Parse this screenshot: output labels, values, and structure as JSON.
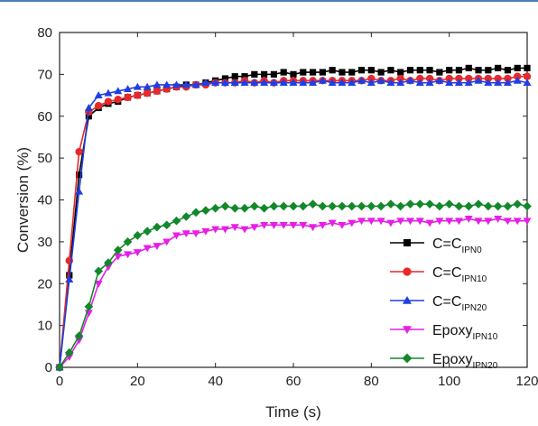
{
  "chart_data": {
    "type": "line",
    "xlabel": "Time (s)",
    "ylabel": "Conversion (%)",
    "xlim": [
      0,
      120
    ],
    "ylim": [
      0,
      80
    ],
    "x_ticks": [
      0,
      20,
      40,
      60,
      80,
      100,
      120
    ],
    "y_ticks": [
      0,
      10,
      20,
      30,
      40,
      50,
      60,
      70,
      80
    ],
    "grid": false,
    "legend_position": "bottom-right",
    "series": [
      {
        "key": "cc_ipn0",
        "name_main": "C=C",
        "name_sub": "IPN0",
        "color": "#000000",
        "marker": "square",
        "x": [
          0,
          2.5,
          5,
          7.5,
          10,
          12.5,
          15,
          17.5,
          20,
          22.5,
          25,
          27.5,
          30,
          32.5,
          35,
          37.5,
          40,
          42.5,
          45,
          47.5,
          50,
          52.5,
          55,
          57.5,
          60,
          62.5,
          65,
          67.5,
          70,
          72.5,
          75,
          77.5,
          80,
          82.5,
          85,
          87.5,
          90,
          92.5,
          95,
          97.5,
          100,
          102.5,
          105,
          107.5,
          110,
          112.5,
          115,
          117.5,
          120
        ],
        "y": [
          0,
          22,
          46,
          60,
          62,
          63,
          63.5,
          64.5,
          65,
          65.5,
          66,
          66.5,
          67,
          67.5,
          67.5,
          68,
          68.5,
          69,
          69.5,
          69.5,
          70,
          70,
          70,
          70.5,
          70,
          70.5,
          70.5,
          70.5,
          71,
          70.5,
          70.5,
          71,
          71,
          70.5,
          71,
          70.5,
          71,
          71,
          71,
          70.5,
          71,
          71,
          71.5,
          71,
          71,
          71.5,
          71,
          71.5,
          71.5
        ]
      },
      {
        "key": "cc_ipn10",
        "name_main": "C=C",
        "name_sub": "IPN10",
        "color": "#e8282a",
        "marker": "circle",
        "x": [
          0,
          2.5,
          5,
          7.5,
          10,
          12.5,
          15,
          17.5,
          20,
          22.5,
          25,
          27.5,
          30,
          32.5,
          35,
          37.5,
          40,
          42.5,
          45,
          47.5,
          50,
          52.5,
          55,
          57.5,
          60,
          62.5,
          65,
          67.5,
          70,
          72.5,
          75,
          77.5,
          80,
          82.5,
          85,
          87.5,
          90,
          92.5,
          95,
          97.5,
          100,
          102.5,
          105,
          107.5,
          110,
          112.5,
          115,
          117.5,
          120
        ],
        "y": [
          0,
          25.5,
          51.5,
          61,
          62.5,
          63.5,
          64,
          64.5,
          65,
          65.5,
          66,
          66.5,
          67,
          67,
          67.5,
          67.5,
          68,
          68,
          68,
          68.5,
          68,
          68.5,
          68,
          68.5,
          68.5,
          68.5,
          68.5,
          68.5,
          68.5,
          68.5,
          68.5,
          68.5,
          69,
          68.5,
          68.5,
          69,
          68.5,
          69,
          69,
          68.5,
          69,
          69,
          69,
          69,
          69,
          69,
          69,
          69.5,
          69.5
        ]
      },
      {
        "key": "cc_ipn20",
        "name_main": "C=C",
        "name_sub": "IPN20",
        "color": "#1f3fe0",
        "marker": "triangle-up",
        "x": [
          0,
          2.5,
          5,
          7.5,
          10,
          12.5,
          15,
          17.5,
          20,
          22.5,
          25,
          27.5,
          30,
          32.5,
          35,
          37.5,
          40,
          42.5,
          45,
          47.5,
          50,
          52.5,
          55,
          57.5,
          60,
          62.5,
          65,
          67.5,
          70,
          72.5,
          75,
          77.5,
          80,
          82.5,
          85,
          87.5,
          90,
          92.5,
          95,
          97.5,
          100,
          102.5,
          105,
          107.5,
          110,
          112.5,
          115,
          117.5,
          120
        ],
        "y": [
          0,
          21,
          42,
          62,
          65,
          65.5,
          66,
          66.5,
          67,
          67,
          67.5,
          67.5,
          67.5,
          67.5,
          67.5,
          68,
          68,
          68,
          68,
          68,
          68,
          68,
          68,
          68,
          68,
          68,
          68,
          68.5,
          68,
          68,
          68,
          68.5,
          68,
          68.5,
          68,
          68,
          68.5,
          68,
          68,
          68.5,
          68,
          68,
          68,
          68.5,
          68,
          68,
          68,
          68.5,
          68
        ]
      },
      {
        "key": "epoxy_ipn10",
        "name_main": "Epoxy",
        "name_sub": "IPN10",
        "color": "#e61ee6",
        "marker": "triangle-down",
        "x": [
          0,
          2.5,
          5,
          7.5,
          10,
          12.5,
          15,
          17.5,
          20,
          22.5,
          25,
          27.5,
          30,
          32.5,
          35,
          37.5,
          40,
          42.5,
          45,
          47.5,
          50,
          52.5,
          55,
          57.5,
          60,
          62.5,
          65,
          67.5,
          70,
          72.5,
          75,
          77.5,
          80,
          82.5,
          85,
          87.5,
          90,
          92.5,
          95,
          97.5,
          100,
          102.5,
          105,
          107.5,
          110,
          112.5,
          115,
          117.5,
          120
        ],
        "y": [
          0,
          2.5,
          6.5,
          13,
          20,
          24,
          26.5,
          27,
          27.5,
          28.5,
          29,
          30,
          31.5,
          32,
          32,
          32.5,
          33,
          33,
          33.5,
          33,
          33.5,
          34,
          34,
          34,
          34,
          34,
          33.5,
          34,
          34.5,
          34,
          34.5,
          35,
          35,
          35,
          34.5,
          35,
          35,
          35,
          34.5,
          35,
          35,
          35,
          35.5,
          35,
          35,
          35.5,
          35,
          35,
          35
        ]
      },
      {
        "key": "epoxy_ipn20",
        "name_main": "Epoxy",
        "name_sub": "IPN20",
        "color": "#12882a",
        "marker": "diamond",
        "x": [
          0,
          2.5,
          5,
          7.5,
          10,
          12.5,
          15,
          17.5,
          20,
          22.5,
          25,
          27.5,
          30,
          32.5,
          35,
          37.5,
          40,
          42.5,
          45,
          47.5,
          50,
          52.5,
          55,
          57.5,
          60,
          62.5,
          65,
          67.5,
          70,
          72.5,
          75,
          77.5,
          80,
          82.5,
          85,
          87.5,
          90,
          92.5,
          95,
          97.5,
          100,
          102.5,
          105,
          107.5,
          110,
          112.5,
          115,
          117.5,
          120
        ],
        "y": [
          0,
          3.5,
          7.5,
          14.5,
          23,
          25,
          28,
          30,
          31.5,
          32.5,
          33.5,
          34,
          35,
          36,
          37,
          37.5,
          38,
          38.5,
          38,
          38,
          38.5,
          38,
          38.5,
          38.5,
          38.5,
          38.5,
          39,
          38.5,
          38.5,
          38.5,
          38.5,
          38.5,
          38.5,
          38.5,
          39,
          38.5,
          39,
          39,
          39,
          38.5,
          39,
          38.5,
          38.5,
          39,
          38.5,
          38.5,
          38.5,
          39,
          38.5
        ]
      }
    ]
  }
}
